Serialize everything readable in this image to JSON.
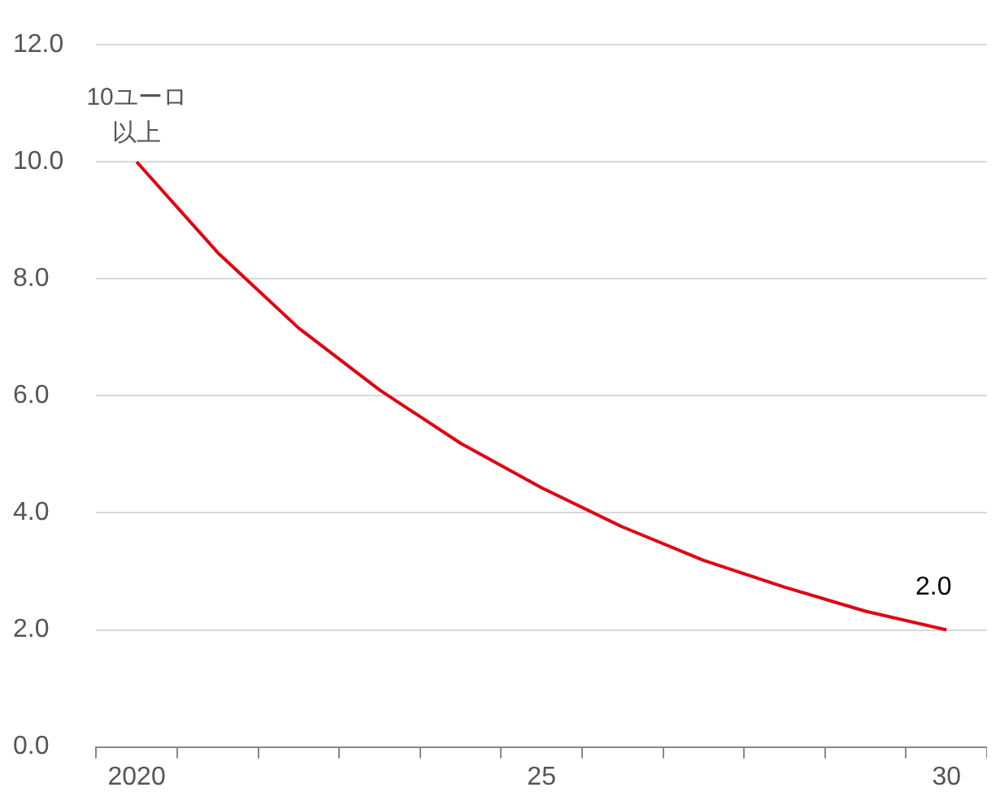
{
  "chart_data": {
    "type": "line",
    "categories": [
      "2020",
      null,
      null,
      null,
      null,
      "25",
      null,
      null,
      null,
      null,
      "30"
    ],
    "series": [
      {
        "color": "#e00012",
        "values": [
          10,
          8.45,
          7.16,
          6.1,
          5.19,
          4.43,
          3.76,
          3.19,
          2.73,
          2.32,
          2.0
        ],
        "value_labels": [
          null,
          null,
          null,
          null,
          null,
          null,
          null,
          null,
          null,
          null,
          "2.0"
        ]
      }
    ],
    "ylim": [
      0,
      12
    ],
    "yticks": [
      {
        "value": 0,
        "label": "0.0"
      },
      {
        "value": 2,
        "label": "2.0"
      },
      {
        "value": 4,
        "label": "4.0"
      },
      {
        "value": 6,
        "label": "6.0"
      },
      {
        "value": 8,
        "label": "8.0"
      },
      {
        "value": 10,
        "label": "10.0"
      },
      {
        "value": 12,
        "label": "12.0"
      }
    ],
    "grid": "y",
    "legend": false,
    "marker": "none",
    "line_style": "solid",
    "annotations": [
      {
        "text": "10ユーロ以上",
        "x": "2020",
        "y": 10
      }
    ]
  }
}
